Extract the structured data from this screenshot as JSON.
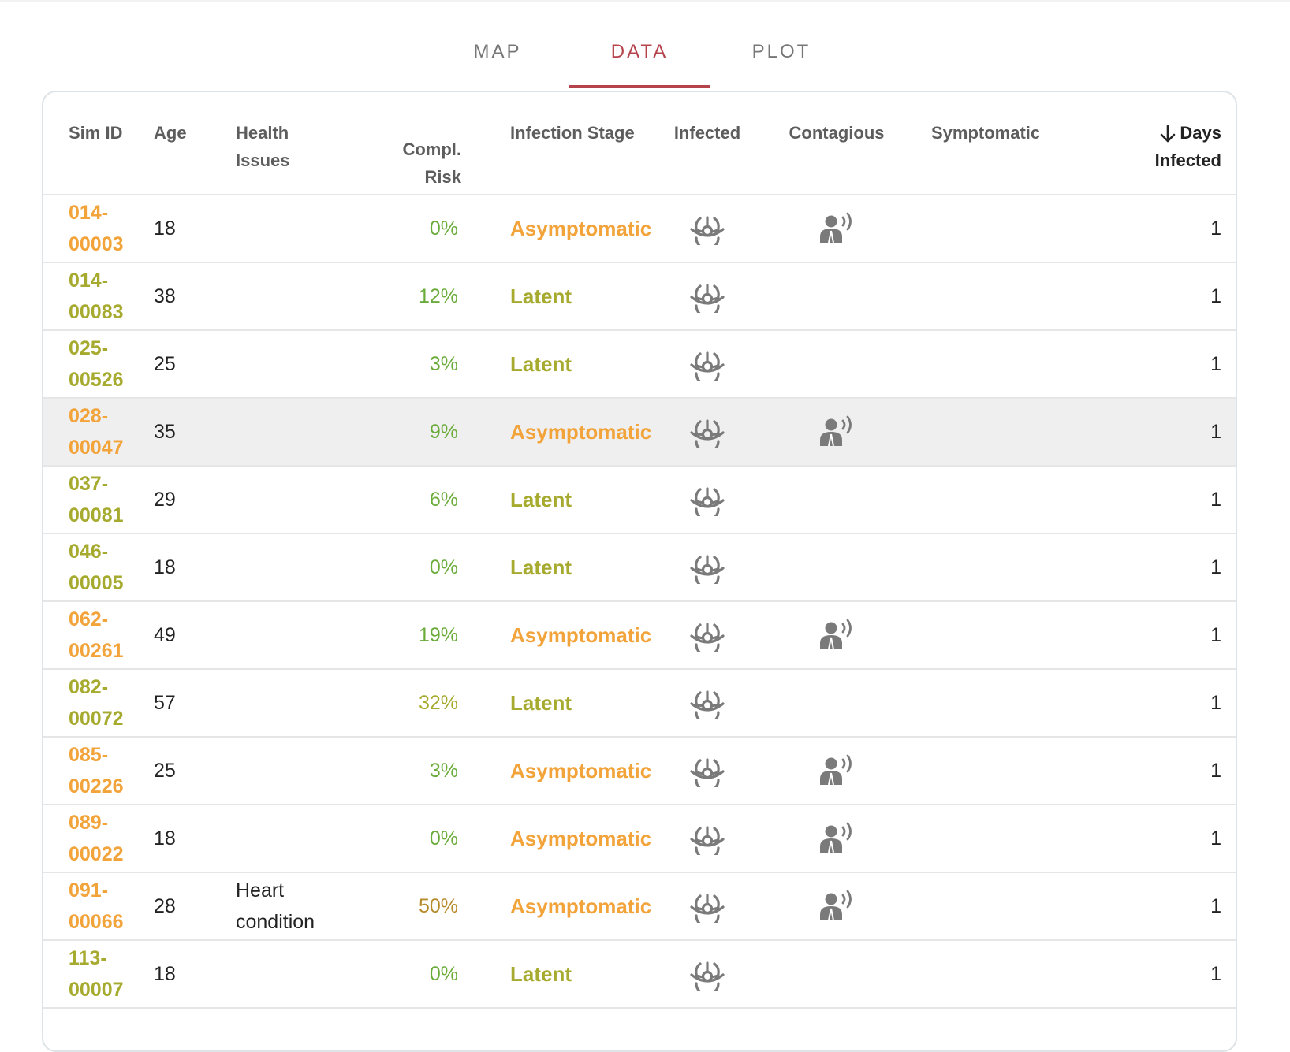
{
  "tabs": [
    {
      "label": "MAP",
      "active": false
    },
    {
      "label": "DATA",
      "active": true
    },
    {
      "label": "PLOT",
      "active": false
    }
  ],
  "colors": {
    "accent": "#b5434b",
    "asymptomatic": "#f2a33a",
    "latent": "#a6ab2f",
    "risk_low": "#6aab39",
    "risk_mid": "#a6ab2f",
    "risk_high": "#b78b2c"
  },
  "table": {
    "headers": {
      "sim_id": "Sim ID",
      "age": "Age",
      "health_line1": "Health",
      "health_line2": "Issues",
      "risk_line1": "Compl.",
      "risk_line2": "Risk",
      "stage": "Infection Stage",
      "infected": "Infected",
      "contagious": "Contagious",
      "symptomatic": "Symptomatic",
      "days_line1": "Days",
      "days_line2": "Infected"
    },
    "sort_icon": "arrow-down-icon",
    "infected_icon": "biohazard-icon",
    "contagious_icon": "person-speaking-icon",
    "rows": [
      {
        "id1": "014-",
        "id2": "00003",
        "age": "18",
        "health1": "",
        "health2": "",
        "risk": "0%",
        "risk_level": "low",
        "stage": "Asymptomatic",
        "infected": true,
        "contagious": true,
        "days": "1"
      },
      {
        "id1": "014-",
        "id2": "00083",
        "age": "38",
        "health1": "",
        "health2": "",
        "risk": "12%",
        "risk_level": "low",
        "stage": "Latent",
        "infected": true,
        "contagious": false,
        "days": "1"
      },
      {
        "id1": "025-",
        "id2": "00526",
        "age": "25",
        "health1": "",
        "health2": "",
        "risk": "3%",
        "risk_level": "low",
        "stage": "Latent",
        "infected": true,
        "contagious": false,
        "days": "1"
      },
      {
        "id1": "028-",
        "id2": "00047",
        "age": "35",
        "health1": "",
        "health2": "",
        "risk": "9%",
        "risk_level": "low",
        "stage": "Asymptomatic",
        "infected": true,
        "contagious": true,
        "days": "1",
        "highlight": true
      },
      {
        "id1": "037-",
        "id2": "00081",
        "age": "29",
        "health1": "",
        "health2": "",
        "risk": "6%",
        "risk_level": "low",
        "stage": "Latent",
        "infected": true,
        "contagious": false,
        "days": "1"
      },
      {
        "id1": "046-",
        "id2": "00005",
        "age": "18",
        "health1": "",
        "health2": "",
        "risk": "0%",
        "risk_level": "low",
        "stage": "Latent",
        "infected": true,
        "contagious": false,
        "days": "1"
      },
      {
        "id1": "062-",
        "id2": "00261",
        "age": "49",
        "health1": "",
        "health2": "",
        "risk": "19%",
        "risk_level": "low",
        "stage": "Asymptomatic",
        "infected": true,
        "contagious": true,
        "days": "1"
      },
      {
        "id1": "082-",
        "id2": "00072",
        "age": "57",
        "health1": "",
        "health2": "",
        "risk": "32%",
        "risk_level": "mid",
        "stage": "Latent",
        "infected": true,
        "contagious": false,
        "days": "1"
      },
      {
        "id1": "085-",
        "id2": "00226",
        "age": "25",
        "health1": "",
        "health2": "",
        "risk": "3%",
        "risk_level": "low",
        "stage": "Asymptomatic",
        "infected": true,
        "contagious": true,
        "days": "1"
      },
      {
        "id1": "089-",
        "id2": "00022",
        "age": "18",
        "health1": "",
        "health2": "",
        "risk": "0%",
        "risk_level": "low",
        "stage": "Asymptomatic",
        "infected": true,
        "contagious": true,
        "days": "1"
      },
      {
        "id1": "091-",
        "id2": "00066",
        "age": "28",
        "health1": "Heart",
        "health2": "condition",
        "risk": "50%",
        "risk_level": "high",
        "stage": "Asymptomatic",
        "infected": true,
        "contagious": true,
        "days": "1"
      },
      {
        "id1": "113-",
        "id2": "00007",
        "age": "18",
        "health1": "",
        "health2": "",
        "risk": "0%",
        "risk_level": "low",
        "stage": "Latent",
        "infected": true,
        "contagious": false,
        "days": "1"
      }
    ]
  }
}
